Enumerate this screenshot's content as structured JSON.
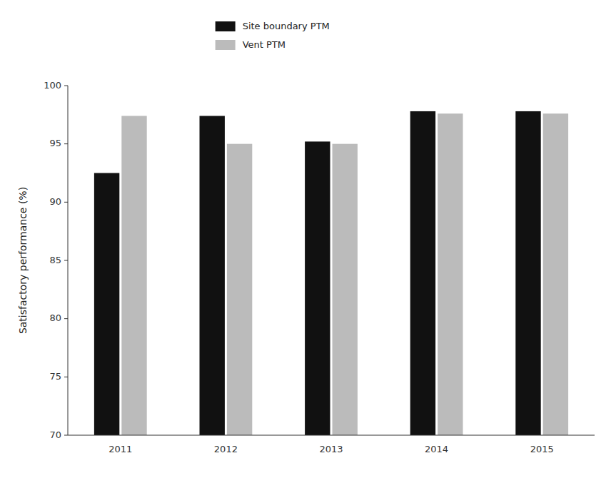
{
  "chart_data": {
    "type": "bar",
    "y_label": "Satisfactory performance (%)",
    "categories": [
      "2011",
      "2012",
      "2013",
      "2014",
      "2015"
    ],
    "series": [
      {
        "name": "Site boundary PTM",
        "color": "#111111",
        "values": [
          92.5,
          97.4,
          95.2,
          97.8,
          97.8
        ]
      },
      {
        "name": "Vent PTM",
        "color": "#bbbbbb",
        "values": [
          97.4,
          95.0,
          95.0,
          97.6,
          97.6
        ]
      }
    ],
    "ylim": [
      70,
      100
    ],
    "yticks": [
      70,
      75,
      80,
      85,
      90,
      95,
      100
    ],
    "grid": false,
    "legend": "top"
  }
}
